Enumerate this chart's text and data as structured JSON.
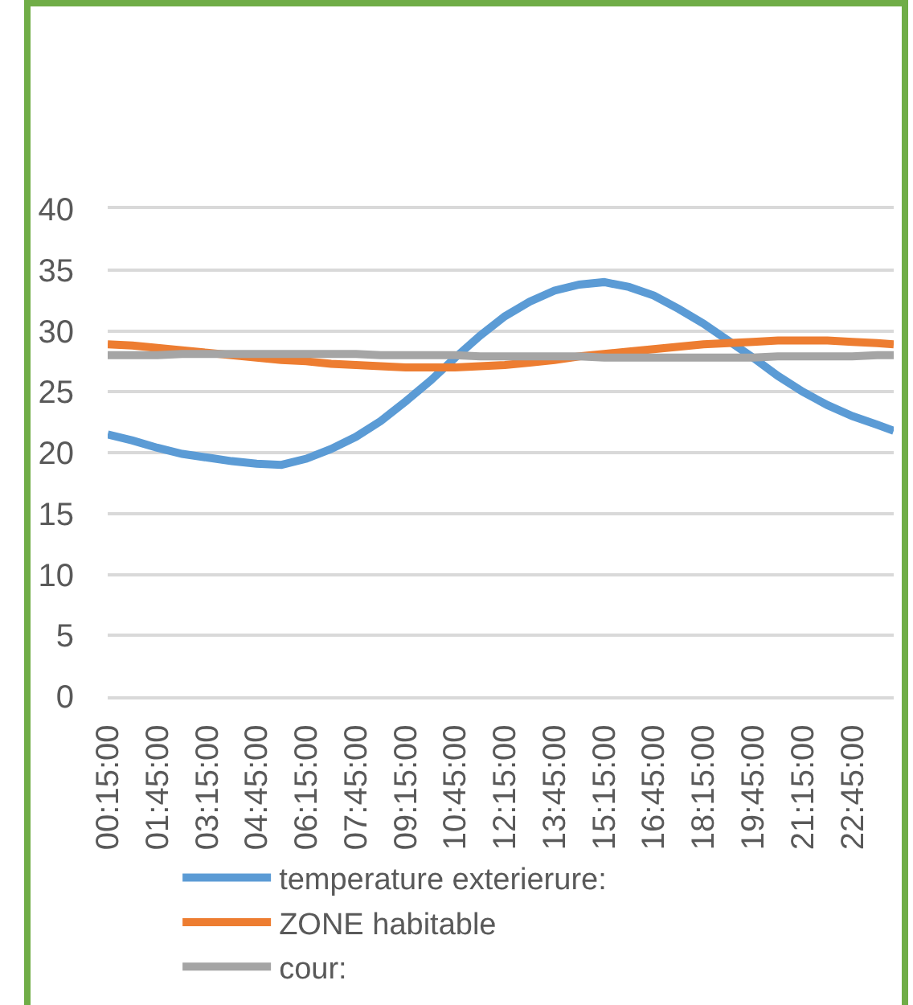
{
  "chart_data": {
    "type": "line",
    "x": [
      0.25,
      1.0,
      1.75,
      2.5,
      3.25,
      4.0,
      4.75,
      5.5,
      6.25,
      7.0,
      7.75,
      8.5,
      9.25,
      10.0,
      10.75,
      11.5,
      12.25,
      13.0,
      13.75,
      14.5,
      15.25,
      16.0,
      16.75,
      17.5,
      18.25,
      19.0,
      19.75,
      20.5,
      21.25,
      22.0,
      22.75,
      23.5,
      24.0
    ],
    "series": [
      {
        "name": "temperature exterierure:",
        "color": "#5b9bd5",
        "values": [
          21.5,
          21.0,
          20.4,
          19.9,
          19.6,
          19.3,
          19.1,
          19.0,
          19.5,
          20.3,
          21.3,
          22.6,
          24.2,
          25.9,
          27.8,
          29.6,
          31.2,
          32.4,
          33.3,
          33.8,
          34.0,
          33.6,
          32.9,
          31.8,
          30.6,
          29.2,
          27.8,
          26.3,
          25.0,
          23.9,
          23.0,
          22.3,
          21.8
        ]
      },
      {
        "name": "ZONE habitable",
        "color": "#ed7d31",
        "values": [
          28.9,
          28.8,
          28.6,
          28.4,
          28.2,
          28.0,
          27.8,
          27.6,
          27.5,
          27.3,
          27.2,
          27.1,
          27.0,
          27.0,
          27.0,
          27.1,
          27.2,
          27.4,
          27.6,
          27.9,
          28.1,
          28.3,
          28.5,
          28.7,
          28.9,
          29.0,
          29.1,
          29.2,
          29.2,
          29.2,
          29.1,
          29.0,
          28.9
        ]
      },
      {
        "name": "cour:",
        "color": "#a5a5a5",
        "values": [
          28.0,
          28.0,
          28.0,
          28.1,
          28.1,
          28.1,
          28.1,
          28.1,
          28.1,
          28.1,
          28.1,
          28.0,
          28.0,
          28.0,
          28.0,
          27.9,
          27.9,
          27.9,
          27.9,
          27.9,
          27.8,
          27.8,
          27.8,
          27.8,
          27.8,
          27.8,
          27.8,
          27.9,
          27.9,
          27.9,
          27.9,
          28.0,
          28.0
        ]
      }
    ],
    "xlim": [
      0.25,
      24.0
    ],
    "xticks": [
      {
        "value": 0.25,
        "label": "00:15:00"
      },
      {
        "value": 1.75,
        "label": "01:45:00"
      },
      {
        "value": 3.25,
        "label": "03:15:00"
      },
      {
        "value": 4.75,
        "label": "04:45:00"
      },
      {
        "value": 6.25,
        "label": "06:15:00"
      },
      {
        "value": 7.75,
        "label": "07:45:00"
      },
      {
        "value": 9.25,
        "label": "09:15:00"
      },
      {
        "value": 10.75,
        "label": "10:45:00"
      },
      {
        "value": 12.25,
        "label": "12:15:00"
      },
      {
        "value": 13.75,
        "label": "13:45:00"
      },
      {
        "value": 15.25,
        "label": "15:15:00"
      },
      {
        "value": 16.75,
        "label": "16:45:00"
      },
      {
        "value": 18.25,
        "label": "18:15:00"
      },
      {
        "value": 19.75,
        "label": "19:45:00"
      },
      {
        "value": 21.25,
        "label": "21:15:00"
      },
      {
        "value": 22.75,
        "label": "22:45:00"
      }
    ],
    "ylim": [
      0,
      40
    ],
    "yticks": [
      0,
      5,
      10,
      15,
      20,
      25,
      30,
      35,
      40
    ],
    "grid": "y",
    "legend": "bottom",
    "marker": "none",
    "line_style": "solid"
  }
}
